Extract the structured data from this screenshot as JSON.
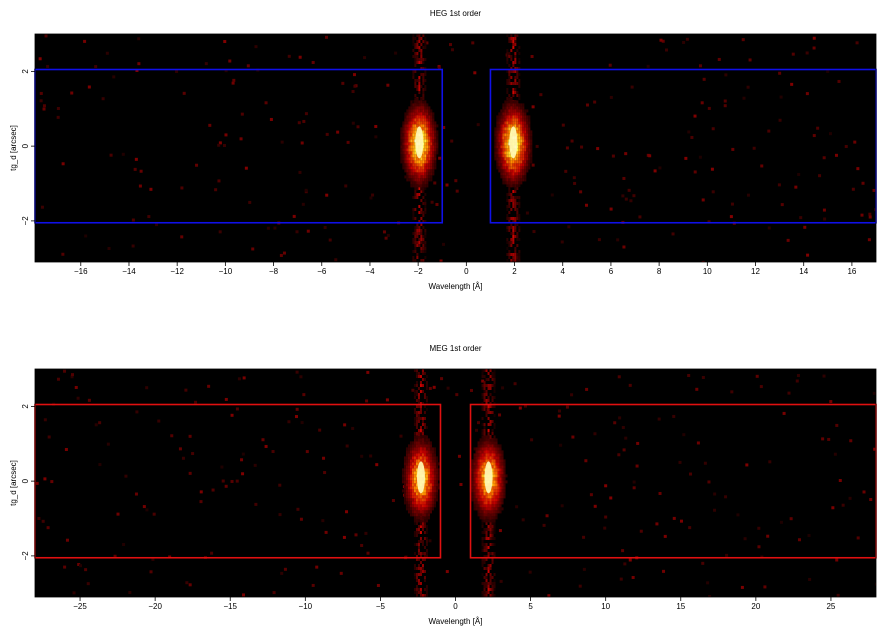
{
  "chart_data": [
    {
      "type": "heatmap",
      "title": "HEG 1st order",
      "xlabel": "Wavelength [Å]",
      "ylabel": "tg_d [arcsec]",
      "xlim": [
        -17.9,
        17.0
      ],
      "ylim": [
        -3.1,
        3.0
      ],
      "xticks": [
        -16,
        -14,
        -12,
        -10,
        -8,
        -6,
        -4,
        -2,
        0,
        2,
        4,
        6,
        8,
        10,
        12,
        14,
        16
      ],
      "xtick_labels": [
        "−16",
        "−14",
        "−12",
        "−10",
        "−8",
        "−6",
        "−4",
        "−2",
        "0",
        "2",
        "4",
        "6",
        "8",
        "10",
        "12",
        "14",
        "16"
      ],
      "yticks": [
        -2,
        0,
        2
      ],
      "ytick_labels": [
        "−2",
        "0",
        "2"
      ],
      "colormap": "heat (black-red-orange-yellow-white)",
      "background_color": "#000000",
      "peaks": [
        {
          "wavelength": -1.95,
          "offset": 0.1,
          "relative_intensity": 1.0
        },
        {
          "wavelength": 1.95,
          "offset": 0.1,
          "relative_intensity": 1.0
        }
      ],
      "extraction_regions": [
        {
          "x": [
            -17.9,
            -1.0
          ],
          "y": [
            -2.05,
            2.05
          ]
        },
        {
          "x": [
            1.0,
            17.0
          ],
          "y": [
            -2.05,
            2.05
          ]
        }
      ],
      "region_color": "#1010e8"
    },
    {
      "type": "heatmap",
      "title": "MEG 1st order",
      "xlabel": "Wavelength [Å]",
      "ylabel": "tg_d [arcsec]",
      "xlim": [
        -28.0,
        28.0
      ],
      "ylim": [
        -3.1,
        3.0
      ],
      "xticks": [
        -25,
        -20,
        -15,
        -10,
        -5,
        0,
        5,
        10,
        15,
        20,
        25
      ],
      "xtick_labels": [
        "−25",
        "−20",
        "−15",
        "−10",
        "−5",
        "0",
        "5",
        "10",
        "15",
        "20",
        "25"
      ],
      "yticks": [
        -2,
        0,
        2
      ],
      "ytick_labels": [
        "−2",
        "0",
        "2"
      ],
      "colormap": "heat (black-red-orange-yellow-white)",
      "background_color": "#000000",
      "peaks": [
        {
          "wavelength": -2.3,
          "offset": 0.1,
          "relative_intensity": 0.85
        },
        {
          "wavelength": 2.2,
          "offset": 0.1,
          "relative_intensity": 0.85
        }
      ],
      "extraction_regions": [
        {
          "x": [
            -28.0,
            -1.0
          ],
          "y": [
            -2.05,
            2.05
          ]
        },
        {
          "x": [
            1.0,
            28.0
          ],
          "y": [
            -2.05,
            2.05
          ]
        }
      ],
      "region_color": "#e01010"
    }
  ]
}
